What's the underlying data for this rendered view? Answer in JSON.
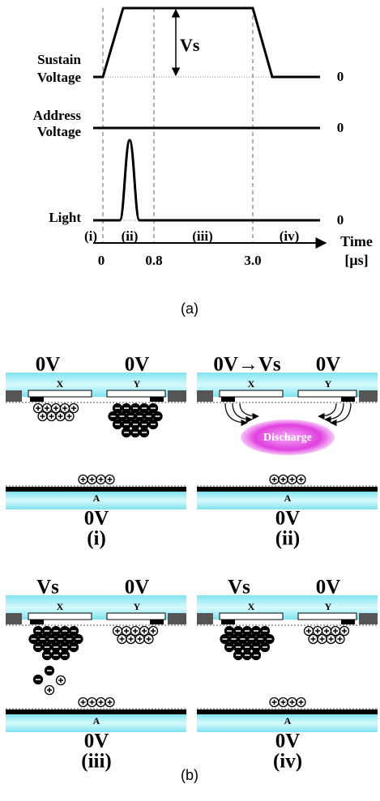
{
  "timing": {
    "sustain_label": [
      "Sustain",
      "Voltage"
    ],
    "address_label": [
      "Address",
      "Voltage"
    ],
    "light_label": "Light",
    "zero_labels": [
      "0",
      "0",
      "0"
    ],
    "vs_label": "Vs",
    "phases": [
      "(i)",
      "(ii)",
      "(iii)",
      "(iv)"
    ],
    "time_label": [
      "Time",
      "[μs]"
    ],
    "time_ticks": [
      "0",
      "0.8",
      "3.0"
    ],
    "caption": "(a)"
  },
  "panels": [
    {
      "x_voltage": "0V",
      "y_voltage": "0V",
      "x": "X",
      "y": "Y",
      "a": "A",
      "a_voltage": "0V",
      "label": "(i)"
    },
    {
      "x_voltage": "0V→Vs",
      "y_voltage": "0V",
      "x": "X",
      "y": "Y",
      "a": "A",
      "a_voltage": "0V",
      "label": "(ii)",
      "discharge": "Discharge"
    },
    {
      "x_voltage": "Vs",
      "y_voltage": "0V",
      "x": "X",
      "y": "Y",
      "a": "A",
      "a_voltage": "0V",
      "label": "(iii)"
    },
    {
      "x_voltage": "Vs",
      "y_voltage": "0V",
      "x": "X",
      "y": "Y",
      "a": "A",
      "a_voltage": "0V",
      "label": "(iv)"
    }
  ],
  "caption_b": "(b)"
}
